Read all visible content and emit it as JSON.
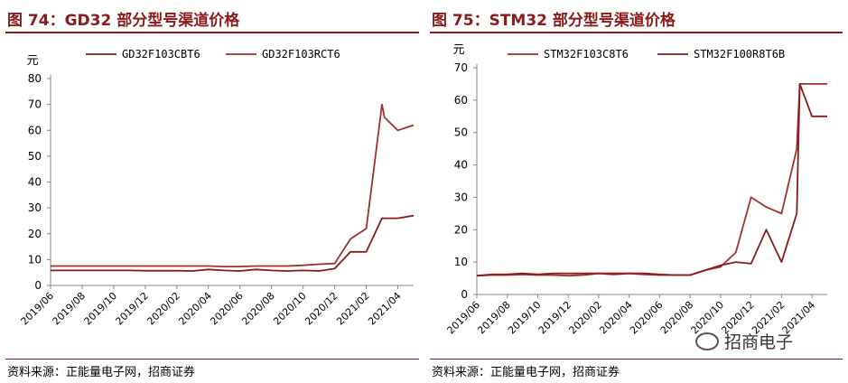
{
  "colors": {
    "accent": "#8b1a1a",
    "series_dark": "#8b1a1a",
    "series_light": "#a0302e",
    "axis": "#888888"
  },
  "left": {
    "title": "图 74：GD32 部分型号渠道价格",
    "source": "资料来源：正能量电子网，招商证券"
  },
  "right": {
    "title": "图 75：STM32 部分型号渠道价格",
    "source": "资料来源：正能量电子网，招商证券"
  },
  "watermark": {
    "text": "招商电子",
    "icon": "wechat-icon"
  },
  "chart_data": [
    {
      "type": "line",
      "title": "GD32 部分型号渠道价格",
      "ylabel": "元",
      "ylim": [
        0,
        80
      ],
      "yticks": [
        0,
        10,
        20,
        30,
        40,
        50,
        60,
        70,
        80
      ],
      "x_range": [
        0,
        23
      ],
      "xticks": [
        {
          "x": 0,
          "label": "2019/06"
        },
        {
          "x": 2,
          "label": "2019/08"
        },
        {
          "x": 4,
          "label": "2019/10"
        },
        {
          "x": 6,
          "label": "2019/12"
        },
        {
          "x": 8,
          "label": "2020/02"
        },
        {
          "x": 10,
          "label": "2020/04"
        },
        {
          "x": 12,
          "label": "2020/06"
        },
        {
          "x": 14,
          "label": "2020/08"
        },
        {
          "x": 16,
          "label": "2020/10"
        },
        {
          "x": 18,
          "label": "2020/12"
        },
        {
          "x": 20,
          "label": "2021/02"
        },
        {
          "x": 22,
          "label": "2021/04"
        }
      ],
      "legend_position": "top",
      "series": [
        {
          "name": "GD32F103CBT6",
          "color": "#8b1a1a",
          "points": [
            [
              0,
              5.8
            ],
            [
              1,
              5.8
            ],
            [
              2,
              5.8
            ],
            [
              3,
              5.8
            ],
            [
              4,
              5.8
            ],
            [
              5,
              5.8
            ],
            [
              6,
              5.7
            ],
            [
              7,
              5.7
            ],
            [
              8,
              5.7
            ],
            [
              9,
              5.6
            ],
            [
              10,
              6.2
            ],
            [
              11,
              5.8
            ],
            [
              12,
              5.6
            ],
            [
              13,
              6.2
            ],
            [
              14,
              5.8
            ],
            [
              15,
              5.6
            ],
            [
              16,
              5.8
            ],
            [
              17,
              5.6
            ],
            [
              18,
              6.5
            ],
            [
              19,
              13
            ],
            [
              20,
              13
            ],
            [
              21,
              26
            ],
            [
              22,
              26
            ],
            [
              23,
              27
            ]
          ]
        },
        {
          "name": "GD32F103RCT6",
          "color": "#a0302e",
          "points": [
            [
              0,
              7.5
            ],
            [
              1,
              7.5
            ],
            [
              2,
              7.5
            ],
            [
              3,
              7.5
            ],
            [
              4,
              7.5
            ],
            [
              5,
              7.5
            ],
            [
              6,
              7.5
            ],
            [
              7,
              7.5
            ],
            [
              8,
              7.5
            ],
            [
              9,
              7.5
            ],
            [
              10,
              7.5
            ],
            [
              11,
              7.3
            ],
            [
              12,
              7.3
            ],
            [
              13,
              7.5
            ],
            [
              14,
              7.5
            ],
            [
              15,
              7.5
            ],
            [
              16,
              7.8
            ],
            [
              17,
              8.2
            ],
            [
              18,
              8.5
            ],
            [
              19,
              18
            ],
            [
              20,
              22
            ],
            [
              21,
              70
            ],
            [
              21.15,
              65
            ],
            [
              22,
              60
            ],
            [
              23,
              62
            ]
          ]
        }
      ]
    },
    {
      "type": "line",
      "title": "STM32 部分型号渠道价格",
      "ylabel": "元",
      "ylim": [
        0,
        70
      ],
      "yticks": [
        0,
        10,
        20,
        30,
        40,
        50,
        60,
        70
      ],
      "x_range": [
        0,
        23
      ],
      "xticks": [
        {
          "x": 0,
          "label": "2019/06"
        },
        {
          "x": 2,
          "label": "2019/08"
        },
        {
          "x": 4,
          "label": "2019/10"
        },
        {
          "x": 6,
          "label": "2019/12"
        },
        {
          "x": 8,
          "label": "2020/02"
        },
        {
          "x": 10,
          "label": "2020/04"
        },
        {
          "x": 12,
          "label": "2020/06"
        },
        {
          "x": 14,
          "label": "2020/08"
        },
        {
          "x": 16,
          "label": "2020/10"
        },
        {
          "x": 18,
          "label": "2020/12"
        },
        {
          "x": 20,
          "label": "2021/02"
        },
        {
          "x": 22,
          "label": "2021/04"
        }
      ],
      "legend_position": "top",
      "series": [
        {
          "name": "STM32F103C8T6",
          "color": "#a0302e",
          "points": [
            [
              0,
              5.8
            ],
            [
              1,
              6
            ],
            [
              2,
              6
            ],
            [
              3,
              6.2
            ],
            [
              4,
              6
            ],
            [
              5,
              6
            ],
            [
              6,
              5.8
            ],
            [
              7,
              6
            ],
            [
              8,
              6.5
            ],
            [
              9,
              6.2
            ],
            [
              10,
              6.5
            ],
            [
              11,
              6.2
            ],
            [
              12,
              6
            ],
            [
              13,
              6
            ],
            [
              14,
              6
            ],
            [
              15,
              7.5
            ],
            [
              16,
              8.5
            ],
            [
              17,
              13
            ],
            [
              18,
              30
            ],
            [
              19,
              27
            ],
            [
              20,
              25
            ],
            [
              21,
              45
            ],
            [
              21.2,
              65
            ],
            [
              22,
              65
            ],
            [
              23,
              65
            ]
          ]
        },
        {
          "name": "STM32F100R8T6B",
          "color": "#8b1a1a",
          "points": [
            [
              0,
              5.8
            ],
            [
              1,
              6.2
            ],
            [
              2,
              6.2
            ],
            [
              3,
              6.5
            ],
            [
              4,
              6.2
            ],
            [
              5,
              6.5
            ],
            [
              6,
              6.5
            ],
            [
              7,
              6.5
            ],
            [
              8,
              6.5
            ],
            [
              9,
              6.5
            ],
            [
              10,
              6.5
            ],
            [
              11,
              6.5
            ],
            [
              12,
              6.2
            ],
            [
              13,
              6
            ],
            [
              14,
              6
            ],
            [
              15,
              7.5
            ],
            [
              16,
              9
            ],
            [
              17,
              10
            ],
            [
              18,
              9.5
            ],
            [
              19,
              20
            ],
            [
              20,
              10
            ],
            [
              21,
              25
            ],
            [
              21.2,
              65
            ],
            [
              22,
              55
            ],
            [
              23,
              55
            ]
          ]
        }
      ]
    }
  ]
}
